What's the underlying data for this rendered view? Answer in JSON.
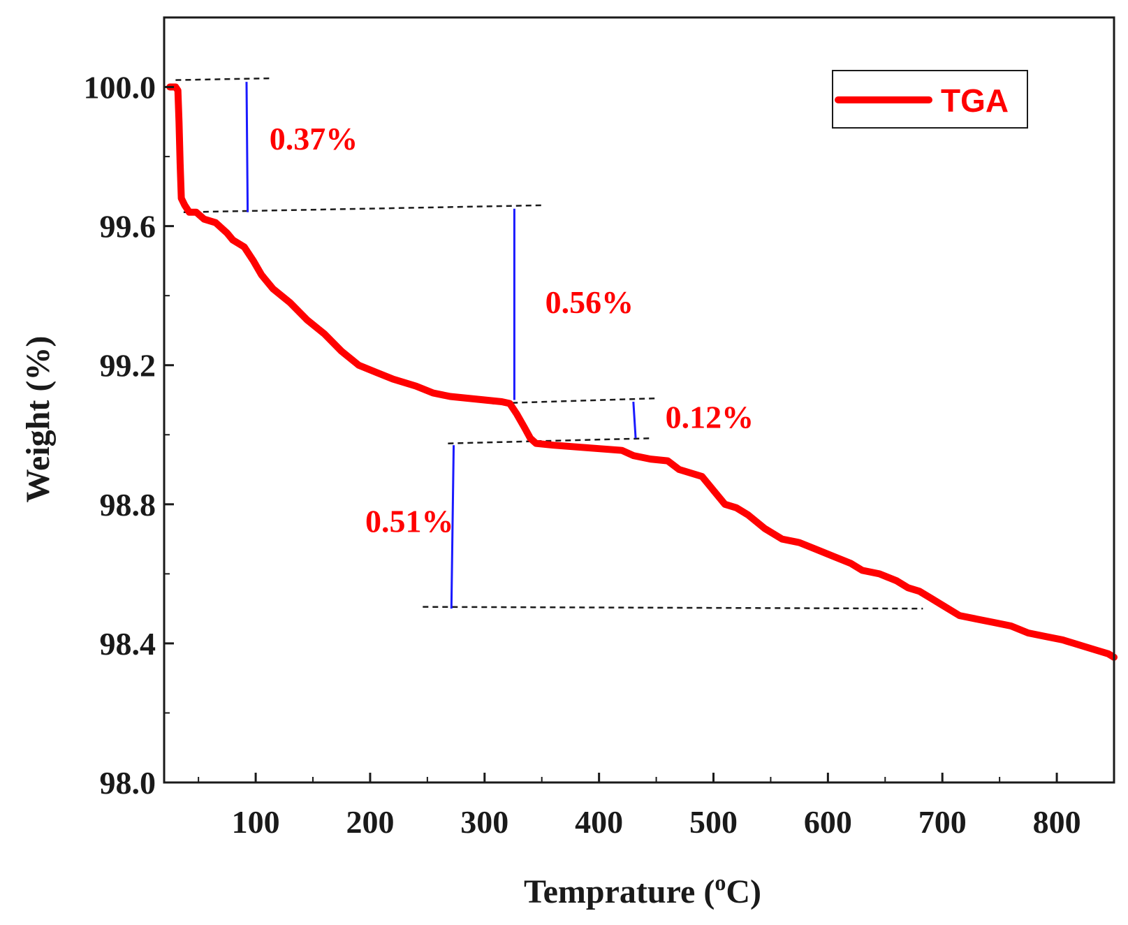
{
  "chart_data": {
    "type": "line",
    "title": "",
    "xlabel": "Temprature (",
    "xlabel_sup": "o",
    "xlabel_unit": "C)",
    "ylabel": "Weight (%)",
    "xlim": [
      20,
      850
    ],
    "ylim": [
      98.0,
      100.2
    ],
    "xticks": [
      100,
      200,
      300,
      400,
      500,
      600,
      700,
      800
    ],
    "yticks": [
      98.0,
      98.4,
      98.8,
      99.2,
      99.6,
      100.0
    ],
    "ytick_labels": [
      "98.0",
      "98.4",
      "98.8",
      "99.2",
      "99.6",
      "100.0"
    ],
    "legend": {
      "position": "top-right",
      "label": "TGA"
    },
    "series": [
      {
        "name": "TGA",
        "color": "#ff0000",
        "points": [
          [
            25,
            100.0
          ],
          [
            30,
            100.0
          ],
          [
            32,
            99.99
          ],
          [
            33,
            99.9
          ],
          [
            34,
            99.78
          ],
          [
            35,
            99.68
          ],
          [
            38,
            99.66
          ],
          [
            42,
            99.64
          ],
          [
            48,
            99.64
          ],
          [
            55,
            99.62
          ],
          [
            65,
            99.61
          ],
          [
            75,
            99.58
          ],
          [
            80,
            99.56
          ],
          [
            90,
            99.54
          ],
          [
            98,
            99.5
          ],
          [
            105,
            99.46
          ],
          [
            115,
            99.42
          ],
          [
            130,
            99.38
          ],
          [
            145,
            99.33
          ],
          [
            160,
            99.29
          ],
          [
            175,
            99.24
          ],
          [
            190,
            99.2
          ],
          [
            205,
            99.18
          ],
          [
            220,
            99.16
          ],
          [
            240,
            99.14
          ],
          [
            255,
            99.12
          ],
          [
            270,
            99.11
          ],
          [
            285,
            99.105
          ],
          [
            300,
            99.1
          ],
          [
            315,
            99.095
          ],
          [
            322,
            99.09
          ],
          [
            328,
            99.06
          ],
          [
            335,
            99.02
          ],
          [
            340,
            98.99
          ],
          [
            345,
            98.975
          ],
          [
            360,
            98.97
          ],
          [
            380,
            98.965
          ],
          [
            400,
            98.96
          ],
          [
            420,
            98.955
          ],
          [
            430,
            98.94
          ],
          [
            445,
            98.93
          ],
          [
            460,
            98.925
          ],
          [
            470,
            98.9
          ],
          [
            480,
            98.89
          ],
          [
            490,
            98.88
          ],
          [
            500,
            98.84
          ],
          [
            510,
            98.8
          ],
          [
            520,
            98.79
          ],
          [
            530,
            98.77
          ],
          [
            545,
            98.73
          ],
          [
            560,
            98.7
          ],
          [
            575,
            98.69
          ],
          [
            590,
            98.67
          ],
          [
            605,
            98.65
          ],
          [
            620,
            98.63
          ],
          [
            630,
            98.61
          ],
          [
            645,
            98.6
          ],
          [
            660,
            98.58
          ],
          [
            670,
            98.56
          ],
          [
            680,
            98.55
          ],
          [
            690,
            98.53
          ],
          [
            700,
            98.51
          ],
          [
            715,
            98.48
          ],
          [
            730,
            98.47
          ],
          [
            745,
            98.46
          ],
          [
            760,
            98.45
          ],
          [
            775,
            98.43
          ],
          [
            790,
            98.42
          ],
          [
            805,
            98.41
          ],
          [
            815,
            98.4
          ],
          [
            825,
            98.39
          ],
          [
            835,
            98.38
          ],
          [
            845,
            98.37
          ],
          [
            850,
            98.36
          ]
        ]
      }
    ],
    "annotations": [
      {
        "text": "0.37%",
        "x": 112,
        "y": 99.82,
        "anchor": "start"
      },
      {
        "text": "0.56%",
        "x": 353,
        "y": 99.35,
        "anchor": "start"
      },
      {
        "text": "0.12%",
        "x": 458,
        "y": 99.02,
        "anchor": "start"
      },
      {
        "text": "0.51%",
        "x": 273,
        "y": 98.72,
        "anchor": "end"
      }
    ],
    "reference_lines": [
      {
        "x1": 30,
        "y1": 100.02,
        "x2": 113,
        "y2": 100.025
      },
      {
        "x1": 37,
        "y1": 99.64,
        "x2": 353,
        "y2": 99.66
      },
      {
        "x1": 307,
        "y1": 99.09,
        "x2": 452,
        "y2": 99.105
      },
      {
        "x1": 268,
        "y1": 98.975,
        "x2": 447,
        "y2": 98.99
      },
      {
        "x1": 246,
        "y1": 98.505,
        "x2": 683,
        "y2": 98.5
      }
    ],
    "step_markers": [
      {
        "x1": 92,
        "y1": 100.015,
        "x2": 93,
        "y2": 99.64
      },
      {
        "x1": 326,
        "y1": 99.65,
        "x2": 326,
        "y2": 99.1
      },
      {
        "x1": 430,
        "y1": 99.095,
        "x2": 432,
        "y2": 98.99
      },
      {
        "x1": 273,
        "y1": 98.97,
        "x2": 271,
        "y2": 98.5
      }
    ]
  }
}
